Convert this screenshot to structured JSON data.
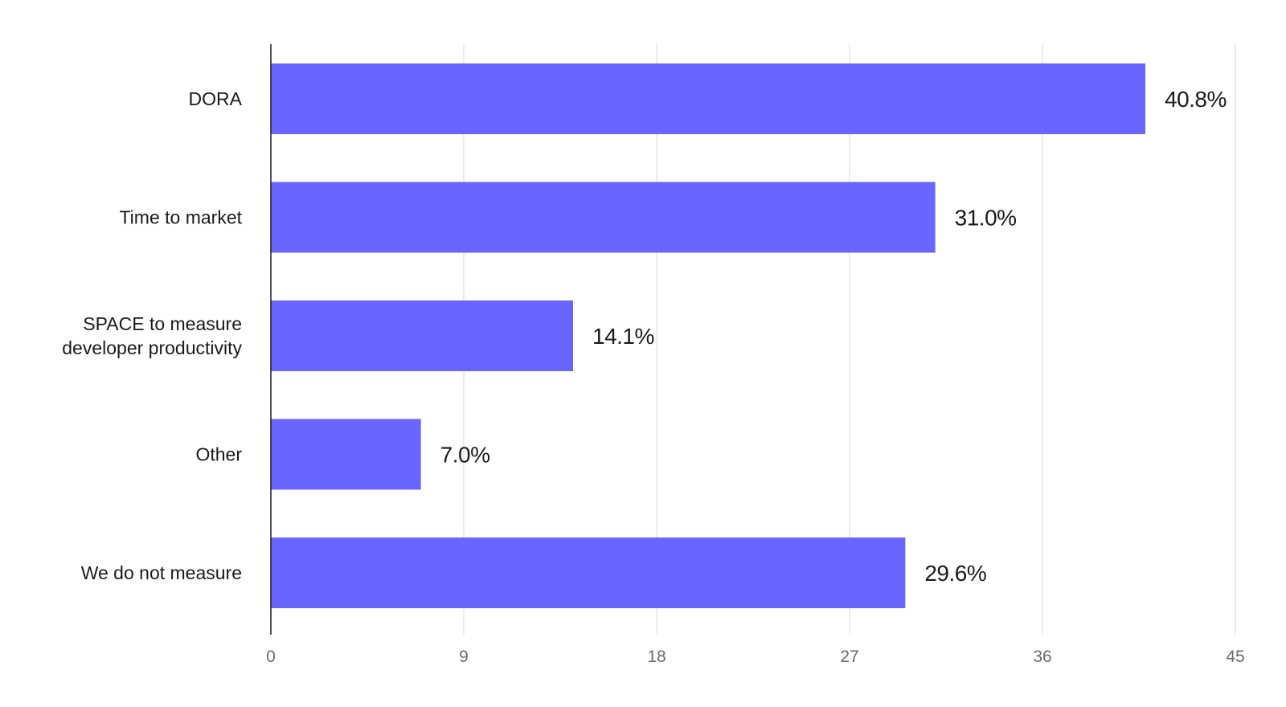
{
  "chart_data": {
    "type": "bar",
    "orientation": "horizontal",
    "categories": [
      [
        "DORA"
      ],
      [
        "Time to market"
      ],
      [
        "SPACE to measure",
        "developer productivity"
      ],
      [
        "Other"
      ],
      [
        "We do not measure"
      ]
    ],
    "values": [
      40.8,
      31.0,
      14.1,
      7.0,
      29.6
    ],
    "value_labels": [
      "40.8%",
      "31.0%",
      "14.1%",
      "7.0%",
      "29.6%"
    ],
    "xlim": [
      0,
      45
    ],
    "ticks": [
      0,
      9,
      18,
      27,
      36,
      45
    ],
    "tick_labels": [
      "0",
      "9",
      "18",
      "27",
      "36",
      "45"
    ],
    "title": "",
    "xlabel": "",
    "ylabel": "",
    "grid": "vertical",
    "legend": "none",
    "bar_color": "#6966ff"
  }
}
